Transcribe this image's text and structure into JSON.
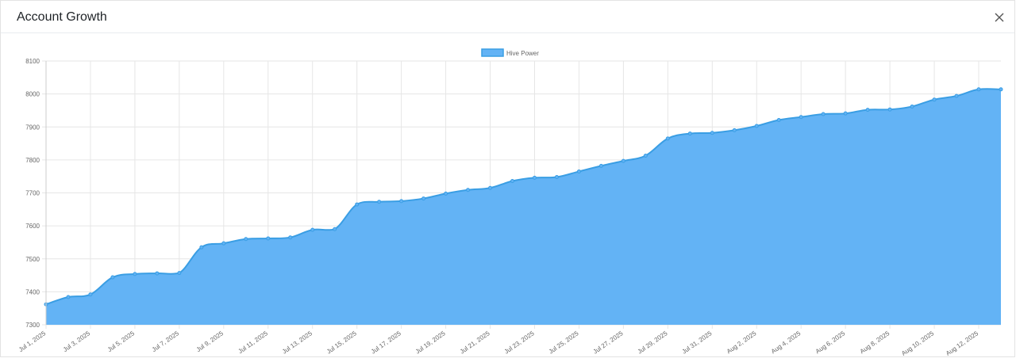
{
  "modal": {
    "title": "Account Growth",
    "close_icon": "close-icon"
  },
  "colors": {
    "area_fill": "#63b3f5",
    "line": "#3a9ee4",
    "grid": "#e6e6e6",
    "tick_text": "#666666"
  },
  "chart_data": {
    "type": "area",
    "title": "",
    "xlabel": "",
    "ylabel": "",
    "legend": {
      "position": "top",
      "entries": [
        "Hive Power"
      ]
    },
    "grid": true,
    "ylim": [
      7300,
      8100
    ],
    "y_ticks": [
      7300,
      7400,
      7500,
      7600,
      7700,
      7800,
      7900,
      8000,
      8100
    ],
    "x_tick_labels": [
      "Jul 1, 2025",
      "Jul 3, 2025",
      "Jul 5, 2025",
      "Jul 7, 2025",
      "Jul 9, 2025",
      "Jul 11, 2025",
      "Jul 13, 2025",
      "Jul 15, 2025",
      "Jul 17, 2025",
      "Jul 19, 2025",
      "Jul 21, 2025",
      "Jul 23, 2025",
      "Jul 25, 2025",
      "Jul 27, 2025",
      "Jul 29, 2025",
      "Jul 31, 2025",
      "Aug 2, 2025",
      "Aug 4, 2025",
      "Aug 6, 2025",
      "Aug 8, 2025",
      "Aug 10, 2025",
      "Aug 12, 2025"
    ],
    "x": [
      "Jul 1, 2025",
      "Jul 2, 2025",
      "Jul 3, 2025",
      "Jul 4, 2025",
      "Jul 5, 2025",
      "Jul 6, 2025",
      "Jul 7, 2025",
      "Jul 8, 2025",
      "Jul 9, 2025",
      "Jul 10, 2025",
      "Jul 11, 2025",
      "Jul 12, 2025",
      "Jul 13, 2025",
      "Jul 14, 2025",
      "Jul 15, 2025",
      "Jul 16, 2025",
      "Jul 17, 2025",
      "Jul 18, 2025",
      "Jul 19, 2025",
      "Jul 20, 2025",
      "Jul 21, 2025",
      "Jul 22, 2025",
      "Jul 23, 2025",
      "Jul 24, 2025",
      "Jul 25, 2025",
      "Jul 26, 2025",
      "Jul 27, 2025",
      "Jul 28, 2025",
      "Jul 29, 2025",
      "Jul 30, 2025",
      "Jul 31, 2025",
      "Aug 1, 2025",
      "Aug 2, 2025",
      "Aug 3, 2025",
      "Aug 4, 2025",
      "Aug 5, 2025",
      "Aug 6, 2025",
      "Aug 7, 2025",
      "Aug 8, 2025",
      "Aug 9, 2025",
      "Aug 10, 2025",
      "Aug 11, 2025",
      "Aug 12, 2025",
      "Aug 13, 2025"
    ],
    "series": [
      {
        "name": "Hive Power",
        "values": [
          7362,
          7384,
          7392,
          7444,
          7454,
          7456,
          7457,
          7535,
          7547,
          7560,
          7562,
          7565,
          7588,
          7590,
          7665,
          7673,
          7675,
          7683,
          7698,
          7709,
          7715,
          7736,
          7746,
          7748,
          7765,
          7782,
          7797,
          7813,
          7865,
          7880,
          7882,
          7890,
          7903,
          7921,
          7930,
          7939,
          7941,
          7952,
          7953,
          7962,
          7983,
          7994,
          8014,
          8014
        ]
      }
    ]
  }
}
